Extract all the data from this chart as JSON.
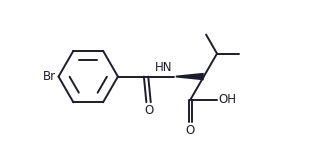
{
  "bg_color": "#ffffff",
  "line_color": "#1c1c2e",
  "line_width": 1.4,
  "text_color": "#1c1c2e",
  "font_size": 8.5,
  "figsize": [
    3.14,
    1.5
  ],
  "dpi": 100,
  "xlim": [
    0.0,
    10.0
  ],
  "ylim": [
    0.5,
    5.0
  ]
}
